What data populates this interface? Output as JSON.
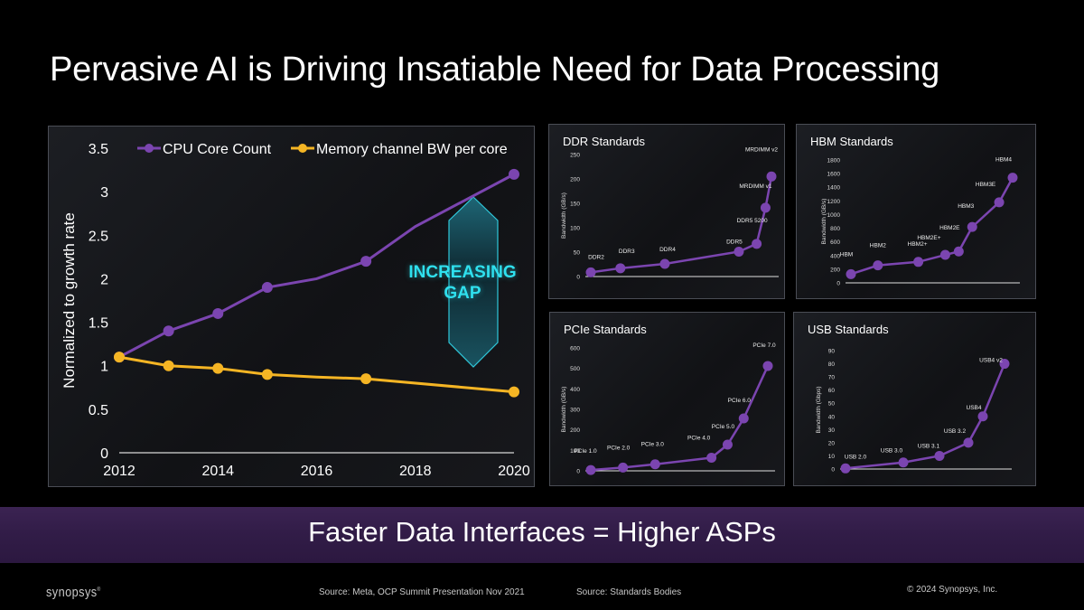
{
  "slide": {
    "title": "Pervasive AI is Driving Insatiable Need for Data Processing",
    "banner": "Faster Data Interfaces = Higher ASPs",
    "logo": "synopsys",
    "source_left": "Source: Meta, OCP Summit Presentation Nov 2021",
    "source_right": "Source: Standards Bodies",
    "copyright": "© 2024 Synopsys, Inc.",
    "gap_annotation": [
      "INCREASING",
      "GAP"
    ]
  },
  "colors": {
    "purple": "#7b45b0",
    "yellow": "#f5b524",
    "cyan": "#2fe0ee",
    "band": "#34204a"
  },
  "chart_data": [
    {
      "id": "main",
      "type": "line",
      "title": "",
      "xlabel": "",
      "ylabel": "Normalized to growth rate",
      "x": [
        2012,
        2013,
        2014,
        2015,
        2016,
        2017,
        2018,
        2020
      ],
      "xticks": [
        "2012",
        "2014",
        "2016",
        "2018",
        "2020"
      ],
      "xlim": [
        2012,
        2020
      ],
      "ylim": [
        0,
        3.5
      ],
      "yticks": [
        "0",
        "0.5",
        "1",
        "1.5",
        "2",
        "2.5",
        "3",
        "3.5"
      ],
      "legend": "top",
      "series": [
        {
          "name": "CPU Core Count",
          "color": "#7b45b0",
          "points": [
            [
              2012,
              1.1
            ],
            [
              2013,
              1.4
            ],
            [
              2014,
              1.6
            ],
            [
              2015,
              1.9
            ],
            [
              2016,
              2.0
            ],
            [
              2017,
              2.2
            ],
            [
              2018,
              2.6
            ],
            [
              2020,
              3.2
            ]
          ],
          "markers": [
            2012,
            2013,
            2014,
            2015,
            2017,
            2020
          ]
        },
        {
          "name": "Memory channel BW per core",
          "color": "#f5b524",
          "points": [
            [
              2012,
              1.1
            ],
            [
              2013,
              1.0
            ],
            [
              2014,
              0.97
            ],
            [
              2015,
              0.9
            ],
            [
              2016,
              0.87
            ],
            [
              2017,
              0.85
            ],
            [
              2020,
              0.7
            ]
          ],
          "markers": [
            2012,
            2013,
            2014,
            2015,
            2017,
            2020
          ]
        }
      ]
    },
    {
      "id": "ddr",
      "type": "line",
      "title": "DDR Standards",
      "ylabel": "Bandwidth (GB/s)",
      "ylim": [
        0,
        250
      ],
      "yticks": [
        "0",
        "50",
        "100",
        "150",
        "200",
        "250"
      ],
      "categories": [
        "DDR2",
        "DDR3",
        "DDR4",
        "DDR5",
        "DDR5 5200",
        "MRDIMM v1",
        "MRDIMM v2"
      ],
      "x": [
        0,
        1,
        2.5,
        5,
        5.6,
        5.9,
        6.1
      ],
      "values": [
        8.5,
        17,
        26,
        51,
        67,
        141,
        205
      ]
    },
    {
      "id": "hbm",
      "type": "line",
      "title": "HBM Standards",
      "ylabel": "Bandwidth (GB/s)",
      "ylim": [
        0,
        1800
      ],
      "yticks": [
        "0",
        "200",
        "400",
        "600",
        "800",
        "1000",
        "1200",
        "1400",
        "1600",
        "1800"
      ],
      "categories": [
        "HBM",
        "HBM2",
        "HBM2+",
        "HBM2E+",
        "HBM2E",
        "HBM3",
        "HBM3E",
        "HBM4"
      ],
      "x": [
        0,
        1,
        2.5,
        3.5,
        4,
        4.5,
        5.5,
        6
      ],
      "values": [
        128,
        256,
        307,
        410,
        460,
        819,
        1180,
        1540
      ]
    },
    {
      "id": "pcie",
      "type": "line",
      "title": "PCIe Standards",
      "ylabel": "Bandwidth (GB/s)",
      "ylim": [
        0,
        600
      ],
      "yticks": [
        "0",
        "100",
        "200",
        "300",
        "400",
        "500",
        "600"
      ],
      "categories": [
        "PCIe 1.0",
        "PCIe 2.0",
        "PCIe 3.0",
        "PCIe 4.0",
        "PCIe 5.0",
        "PCIe 6.0",
        "PCIe 7.0"
      ],
      "x": [
        0,
        1,
        2,
        3.75,
        4.25,
        4.75,
        5.5
      ],
      "values": [
        4,
        16,
        32,
        64,
        128,
        256,
        512
      ]
    },
    {
      "id": "usb",
      "type": "line",
      "title": "USB Standards",
      "ylabel": "Bandwidth (Gbps)",
      "ylim": [
        0,
        90
      ],
      "yticks": [
        "0",
        "10",
        "20",
        "30",
        "40",
        "50",
        "60",
        "70",
        "80",
        "90"
      ],
      "categories": [
        "USB 2.0",
        "USB 3.0",
        "USB 3.1",
        "USB 3.2",
        "USB4",
        "USB4 v2"
      ],
      "x": [
        0,
        2,
        3.25,
        4.25,
        4.75,
        5.5
      ],
      "values": [
        0.48,
        5,
        10,
        20,
        40,
        80
      ]
    }
  ]
}
